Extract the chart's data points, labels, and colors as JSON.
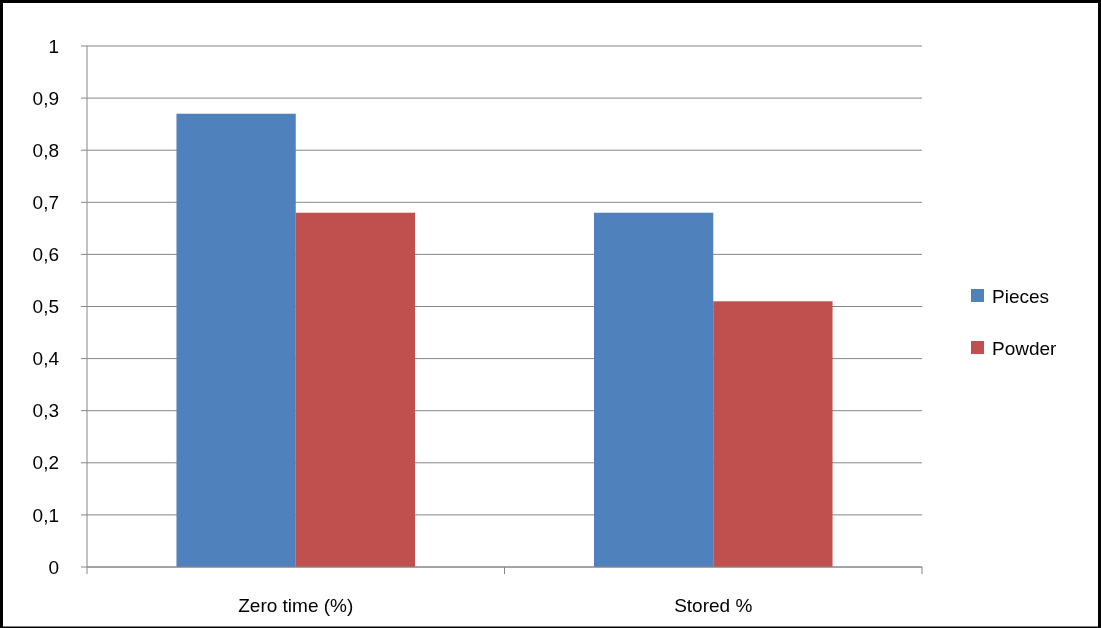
{
  "chart_data": {
    "type": "bar",
    "categories": [
      "Zero time (%)",
      "Stored %"
    ],
    "series": [
      {
        "name": "Pieces",
        "color": "#4f81bd",
        "values": [
          0.87,
          0.68
        ]
      },
      {
        "name": "Powder",
        "color": "#c0504d",
        "values": [
          0.68,
          0.51
        ]
      }
    ],
    "ylim": [
      0,
      1
    ],
    "yticks": [
      0,
      {
        "value": 0.1,
        "label": "0,1"
      },
      {
        "value": 0.2,
        "label": "0,2"
      },
      {
        "value": 0.3,
        "label": "0,3"
      },
      {
        "value": 0.4,
        "label": "0,4"
      },
      {
        "value": 0.5,
        "label": "0,5"
      },
      {
        "value": 0.6,
        "label": "0,6"
      },
      {
        "value": 0.7,
        "label": "0,7"
      },
      {
        "value": 0.8,
        "label": "0,8"
      },
      {
        "value": 0.9,
        "label": "0,9"
      },
      1
    ],
    "grid": "y",
    "legend": "right"
  }
}
